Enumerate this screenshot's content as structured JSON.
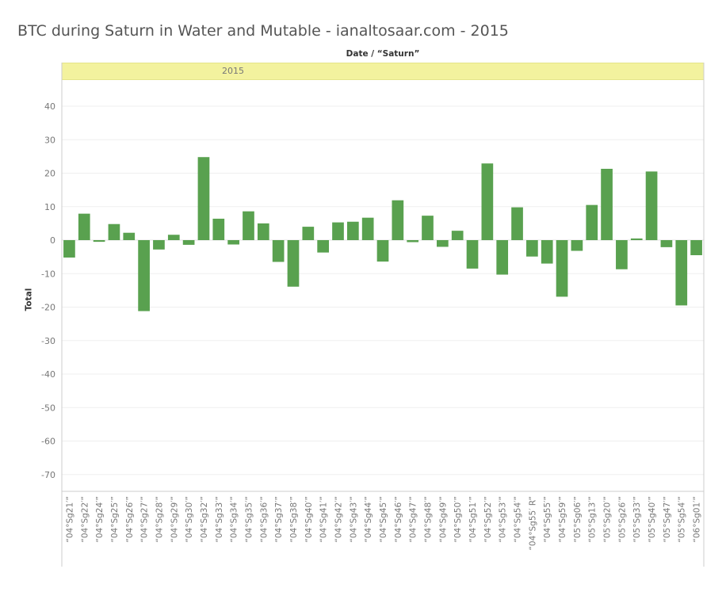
{
  "title": "BTC during Saturn in Water and Mutable - ianaltosaar.com - 2015",
  "column_header": "Date / “Saturn”",
  "year_band_label": "2015",
  "colors": {
    "bar": "#59a14f",
    "grid": "#efefef",
    "tick_text": "#777777",
    "band": "#f3f29e",
    "axis": "#cccccc"
  },
  "chart_data": {
    "type": "bar",
    "title": "BTC during Saturn in Water and Mutable - ianaltosaar.com - 2015",
    "xlabel": "",
    "ylabel": "Total",
    "ylim": [
      -77,
      44
    ],
    "yticks": [
      40,
      30,
      20,
      10,
      0,
      -10,
      -20,
      -30,
      -40,
      -50,
      -60,
      -70
    ],
    "grid": true,
    "categories": [
      "“04°Sg21′”",
      "“04°Sg22′”",
      "“04°Sg24′”",
      "“04°Sg25′”",
      "“04°Sg26′”",
      "“04°Sg27′”",
      "“04°Sg28′”",
      "“04°Sg29′”",
      "“04°Sg30′”",
      "“04°Sg32′”",
      "“04°Sg33′”",
      "“04°Sg34′”",
      "“04°Sg35′”",
      "“04°Sg36′”",
      "“04°Sg37′”",
      "“04°Sg38′”",
      "“04°Sg40′”",
      "“04°Sg41′”",
      "“04°Sg42′”",
      "“04°Sg43′”",
      "“04°Sg44′”",
      "“04°Sg45′”",
      "“04°Sg46′”",
      "“04°Sg47′”",
      "“04°Sg48′”",
      "“04°Sg49′”",
      "“04°Sg50′”",
      "“04°Sg51′”",
      "“04°Sg52′”",
      "“04°Sg53′”",
      "“04°Sg54′”",
      "“04°Sg55′ R”",
      "“04°Sg55′”",
      "“04°Sg59′”",
      "“05°Sg06′”",
      "“05°Sg13′”",
      "“05°Sg20′”",
      "“05°Sg26′”",
      "“05°Sg33′”",
      "“05°Sg40′”",
      "“05°Sg47′”",
      "“05°Sg54′”",
      "“06°Sg01′”"
    ],
    "values": [
      -5.2,
      7.9,
      -0.5,
      4.8,
      2.2,
      -21.2,
      -2.8,
      1.6,
      -1.4,
      24.8,
      6.4,
      -1.3,
      8.6,
      5.0,
      -6.5,
      -13.9,
      4.0,
      -3.7,
      5.3,
      5.5,
      6.7,
      -6.4,
      11.9,
      -0.6,
      7.3,
      -2.0,
      2.8,
      -8.5,
      22.9,
      -10.3,
      9.8,
      -4.9,
      -7.0,
      -16.9,
      -3.2,
      10.5,
      21.3,
      -8.7,
      0.5,
      20.5,
      -2.1,
      -19.5,
      -4.5
    ]
  }
}
